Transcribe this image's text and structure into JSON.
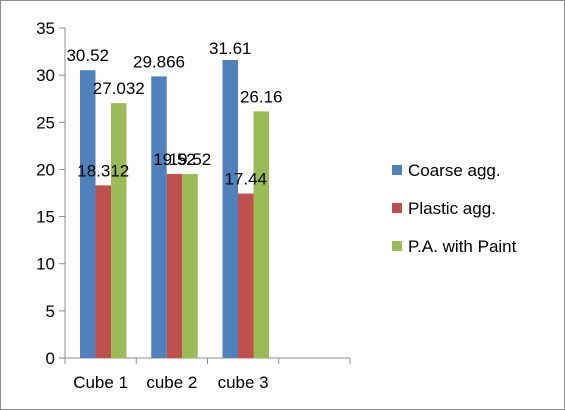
{
  "chart_data": {
    "type": "bar",
    "title": "",
    "xlabel": "",
    "ylabel": "",
    "categories": [
      "Cube 1",
      "cube 2",
      "cube 3"
    ],
    "ylim": [
      0,
      35
    ],
    "yticks": [
      0,
      5,
      10,
      15,
      20,
      25,
      30,
      35
    ],
    "grid": false,
    "legend_position": "right",
    "series": [
      {
        "name": "Coarse agg.",
        "color": "#4f81bd",
        "values": [
          30.52,
          29.866,
          31.61
        ],
        "labels": [
          "30.52",
          "29.866",
          "31.61"
        ]
      },
      {
        "name": "Plastic agg.",
        "color": "#c0504d",
        "values": [
          18.312,
          19.52,
          17.44
        ],
        "labels": [
          "18.312",
          "19.52",
          "17.44"
        ]
      },
      {
        "name": "P.A. with Paint",
        "color": "#9bbb59",
        "values": [
          27.032,
          19.52,
          26.16
        ],
        "labels": [
          "27.032",
          "19.52",
          "26.16"
        ]
      }
    ]
  }
}
